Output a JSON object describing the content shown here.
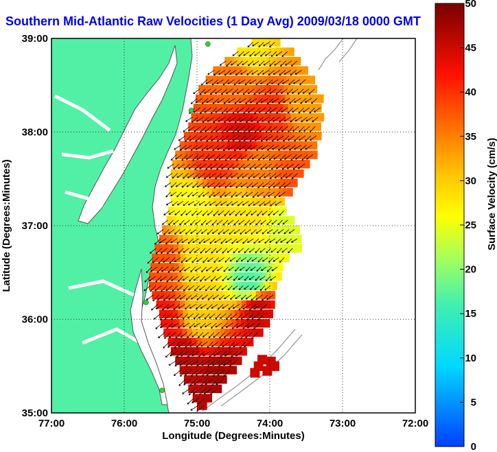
{
  "title": "Southern Mid-Atlantic Raw Velocities (1 Day Avg) 2009/03/18 0000 GMT",
  "x_axis": {
    "label": "Longitude (Degrees:Minutes)",
    "ticks": [
      "77:00",
      "76:00",
      "75:00",
      "74:00",
      "73:00",
      "72:00"
    ],
    "range": [
      -77,
      -72
    ]
  },
  "y_axis": {
    "label": "Latitude (Degrees:Minutes)",
    "ticks": [
      "35:00",
      "36:00",
      "37:00",
      "38:00",
      "39:00"
    ],
    "range": [
      35,
      39
    ]
  },
  "colorbar": {
    "label": "Surface Velocity (cm/s)",
    "ticks": [
      "0",
      "5",
      "10",
      "15",
      "20",
      "25",
      "30",
      "35",
      "40",
      "45",
      "50"
    ],
    "range": [
      0,
      50
    ]
  },
  "colors": {
    "land": "#52f0a5",
    "water": "#ffffff",
    "coast_line": "#555555",
    "isobath": "#999999",
    "grid": "#000000",
    "title": "#0000ee",
    "station": "#22dd22"
  },
  "stations": [
    {
      "lon": -74.85,
      "lat": 38.94
    },
    {
      "lon": -75.08,
      "lat": 38.23
    },
    {
      "lon": -75.7,
      "lat": 36.18
    },
    {
      "lon": -75.48,
      "lat": 35.24
    }
  ],
  "chart_data": {
    "type": "heatmap",
    "title": "Southern Mid-Atlantic Raw Velocities (1 Day Avg) 2009/03/18 0000 GMT",
    "xlabel": "Longitude (Degrees:Minutes)",
    "ylabel": "Latitude (Degrees:Minutes)",
    "xlim": [
      -77,
      -72
    ],
    "ylim": [
      35,
      39
    ],
    "grid": true,
    "colorbar_label": "Surface Velocity (cm/s)",
    "colorbar_range": [
      0,
      50
    ],
    "speed_regions": [
      {
        "lon": -74.3,
        "lat": 38.9,
        "speed": 28
      },
      {
        "lon": -74.5,
        "lat": 38.5,
        "speed": 36
      },
      {
        "lon": -74.4,
        "lat": 38.0,
        "speed": 44
      },
      {
        "lon": -74.0,
        "lat": 38.2,
        "speed": 40
      },
      {
        "lon": -73.6,
        "lat": 38.3,
        "speed": 33
      },
      {
        "lon": -74.8,
        "lat": 37.7,
        "speed": 40
      },
      {
        "lon": -74.2,
        "lat": 37.6,
        "speed": 35
      },
      {
        "lon": -73.7,
        "lat": 37.5,
        "speed": 38
      },
      {
        "lon": -75.1,
        "lat": 37.2,
        "speed": 26
      },
      {
        "lon": -74.4,
        "lat": 37.1,
        "speed": 28
      },
      {
        "lon": -73.8,
        "lat": 37.0,
        "speed": 24
      },
      {
        "lon": -75.5,
        "lat": 36.6,
        "speed": 38
      },
      {
        "lon": -75.0,
        "lat": 36.6,
        "speed": 28
      },
      {
        "lon": -74.3,
        "lat": 36.4,
        "speed": 17
      },
      {
        "lon": -75.5,
        "lat": 36.0,
        "speed": 42
      },
      {
        "lon": -75.0,
        "lat": 36.0,
        "speed": 30
      },
      {
        "lon": -74.2,
        "lat": 36.1,
        "speed": 45
      },
      {
        "lon": -75.2,
        "lat": 35.6,
        "speed": 46
      },
      {
        "lon": -74.7,
        "lat": 35.4,
        "speed": 47
      },
      {
        "lon": -74.0,
        "lat": 35.5,
        "speed": 45
      }
    ],
    "mean_direction": "southwest"
  }
}
